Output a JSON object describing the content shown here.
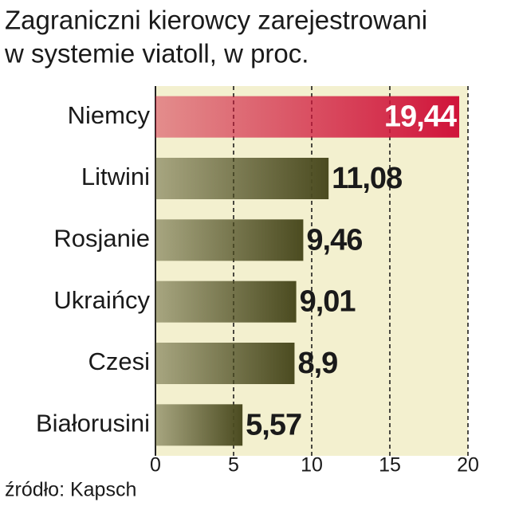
{
  "chart_data": {
    "type": "bar",
    "orientation": "horizontal",
    "title": [
      "Zagraniczni kierowcy  zarejestrowani",
      "w systemie viatoll, w proc."
    ],
    "categories": [
      "Niemcy",
      "Litwini",
      "Rosjanie",
      "Ukraińcy",
      "Czesi",
      "Białorusini"
    ],
    "values": [
      19.44,
      11.08,
      9.46,
      9.01,
      8.9,
      5.57
    ],
    "value_labels": [
      "19,44",
      "11,08",
      "9,46",
      "9,01",
      "8,9",
      "5,57"
    ],
    "colors": [
      "#d0143a",
      "#4b4b20",
      "#4b4b20",
      "#4b4b20",
      "#4b4b20",
      "#4b4b20"
    ],
    "xlim": [
      0,
      20
    ],
    "xticks": [
      0,
      5,
      10,
      15,
      20
    ],
    "grid": true,
    "source": "źródło: Kapsch"
  }
}
